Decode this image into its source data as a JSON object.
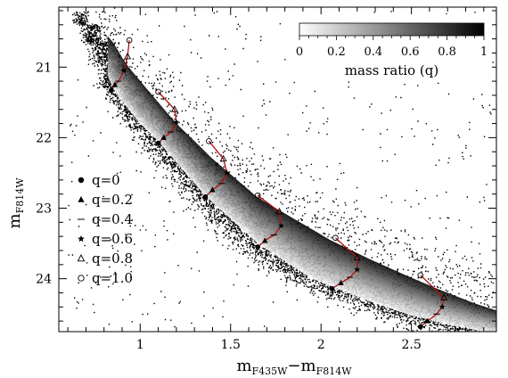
{
  "chart_data": {
    "type": "scatter",
    "xlabel": {
      "main": "m",
      "sub": "F435W",
      "minus": "−",
      "main2": "m",
      "sub2": "F814W"
    },
    "ylabel": {
      "main": "m",
      "sub": "F814W"
    },
    "xlim": [
      0.55,
      2.97
    ],
    "ylim": [
      24.75,
      20.15
    ],
    "xticks": [
      1,
      1.5,
      2,
      2.5
    ],
    "xtick_labels": [
      "1",
      "1.5",
      "2",
      "2.5"
    ],
    "yticks": [
      21,
      22,
      23,
      24
    ],
    "ytick_labels": [
      "21",
      "22",
      "23",
      "24"
    ],
    "colorbar": {
      "label": "mass ratio (q)",
      "range": [
        0,
        1
      ],
      "ticks": [
        0,
        0.2,
        0.4,
        0.6,
        0.8,
        1
      ],
      "tick_labels": [
        "0",
        "0.2",
        "0.4",
        "0.6",
        "0.8",
        "1"
      ],
      "colormap": [
        "#ffffff",
        "#000000"
      ]
    },
    "legend": {
      "placement": "left",
      "entries": [
        {
          "symbol": "filled-circle",
          "label": "q=0"
        },
        {
          "symbol": "filled-triangle",
          "label": "q=0.2"
        },
        {
          "symbol": "dash",
          "label": "q=0.4"
        },
        {
          "symbol": "star",
          "label": "q=0.6"
        },
        {
          "symbol": "open-triangle",
          "label": "q=0.8"
        },
        {
          "symbol": "open-circle",
          "label": "q=1.0"
        }
      ]
    },
    "main_sequence": {
      "x": [
        0.62,
        0.7,
        0.75,
        0.8,
        0.85,
        0.92,
        1.0,
        1.1,
        1.2,
        1.35,
        1.5,
        1.65,
        1.8,
        1.95,
        2.1,
        2.3,
        2.5,
        2.7,
        2.9
      ],
      "y": [
        20.2,
        20.5,
        20.75,
        21.0,
        21.3,
        21.55,
        21.8,
        22.05,
        22.35,
        22.8,
        23.15,
        23.5,
        23.75,
        24.0,
        24.15,
        24.35,
        24.52,
        24.65,
        24.75
      ]
    },
    "binary_sequence": {
      "x": [
        0.8,
        0.85,
        0.92,
        1.05,
        1.2,
        1.4,
        1.65,
        1.85,
        2.05,
        2.25,
        2.45,
        2.65,
        2.85,
        2.97
      ],
      "y": [
        20.5,
        20.65,
        20.95,
        21.35,
        21.8,
        22.3,
        22.85,
        23.15,
        23.45,
        23.7,
        23.93,
        24.15,
        24.35,
        24.45
      ]
    },
    "binary_tracks": [
      {
        "x": [
          0.84,
          0.86,
          0.88,
          0.91,
          0.93,
          0.94
        ],
        "y": [
          21.33,
          21.25,
          21.2,
          21.05,
          20.85,
          20.62
        ]
      },
      {
        "x": [
          1.1,
          1.13,
          1.17,
          1.2,
          1.19,
          1.1
        ],
        "y": [
          22.08,
          22.0,
          21.92,
          21.78,
          21.6,
          21.35
        ]
      },
      {
        "x": [
          1.36,
          1.4,
          1.45,
          1.48,
          1.46,
          1.38
        ],
        "y": [
          22.84,
          22.74,
          22.65,
          22.5,
          22.3,
          22.05
        ]
      },
      {
        "x": [
          1.65,
          1.69,
          1.74,
          1.78,
          1.77,
          1.65
        ],
        "y": [
          23.55,
          23.46,
          23.38,
          23.25,
          23.05,
          22.82
        ]
      },
      {
        "x": [
          2.06,
          2.11,
          2.16,
          2.2,
          2.2,
          2.08
        ],
        "y": [
          24.14,
          24.06,
          23.98,
          23.87,
          23.7,
          23.42
        ]
      },
      {
        "x": [
          2.55,
          2.59,
          2.64,
          2.67,
          2.68,
          2.55
        ],
        "y": [
          24.68,
          24.6,
          24.5,
          24.4,
          24.27,
          23.95
        ]
      }
    ],
    "track_point_q": [
      0,
      0.2,
      0.4,
      0.6,
      0.8,
      1.0
    ]
  },
  "colors": {
    "points": "#000000",
    "track": "#b01010",
    "axes": "#000000",
    "background": "#ffffff"
  }
}
